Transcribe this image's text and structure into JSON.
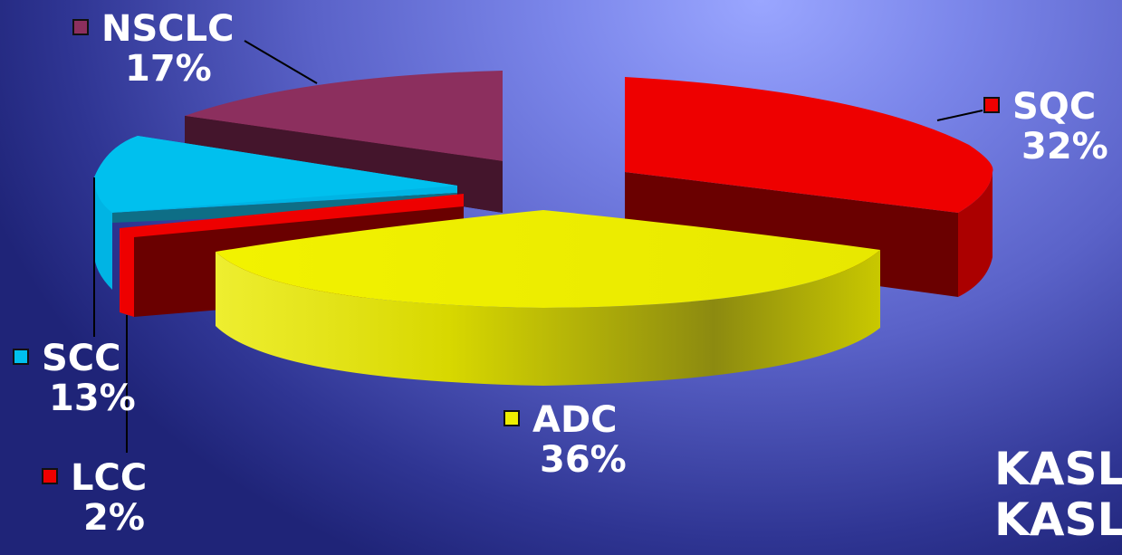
{
  "chart_data": {
    "type": "pie",
    "slices": [
      {
        "label": "SQC",
        "percent": "32%",
        "value": 32,
        "color": "#ee0000"
      },
      {
        "label": "ADC",
        "percent": "36%",
        "value": 36,
        "color": "#eeee00"
      },
      {
        "label": "LCC",
        "percent": "2%",
        "value": 2,
        "color": "#ee0000"
      },
      {
        "label": "SCC",
        "percent": "13%",
        "value": 13,
        "color": "#00c0ee"
      },
      {
        "label": "NSCLC",
        "percent": "17%",
        "value": 17,
        "color": "#8c2f5e"
      }
    ]
  },
  "corner_text": [
    "KASLC",
    "KASLC"
  ]
}
